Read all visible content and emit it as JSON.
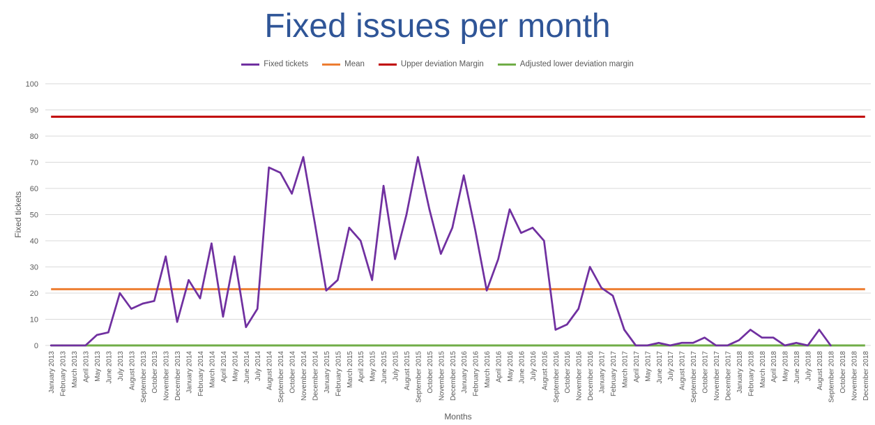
{
  "chart_data": {
    "type": "line",
    "title": "Fixed issues per month",
    "xlabel": "Months",
    "ylabel": "Fixed tickets",
    "ylim": [
      0,
      100
    ],
    "y_ticks": [
      "0",
      "10",
      "20",
      "30",
      "40",
      "50",
      "60",
      "70",
      "80",
      "90",
      "100"
    ],
    "grid": true,
    "legend_position": "top",
    "categories": [
      "January 2013",
      "February 2013",
      "March 2013",
      "April 2013",
      "May 2013",
      "June 2013",
      "July 2013",
      "August 2013",
      "September 2013",
      "October 2013",
      "November 2013",
      "December 2013",
      "January 2014",
      "February 2014",
      "March 2014",
      "April 2014",
      "May 2014",
      "June 2014",
      "July 2014",
      "August 2014",
      "September 2014",
      "October 2014",
      "November 2014",
      "December 2014",
      "January 2015",
      "February 2015",
      "March 2015",
      "April 2015",
      "May 2015",
      "June 2015",
      "July 2015",
      "August 2015",
      "September 2015",
      "October 2015",
      "November 2015",
      "December 2015",
      "January 2016",
      "February 2016",
      "March 2016",
      "April 2016",
      "May 2016",
      "June 2016",
      "July 2016",
      "August 2016",
      "September 2016",
      "October 2016",
      "November 2016",
      "December 2016",
      "January 2017",
      "February 2017",
      "March 2017",
      "April 2017",
      "May 2017",
      "June 2017",
      "July 2017",
      "August 2017",
      "September 2017",
      "October 2017",
      "November 2017",
      "December 2017",
      "January 2018",
      "February 2018",
      "March 2018",
      "April 2018",
      "May 2018",
      "June 2018",
      "July 2018",
      "August 2018",
      "September 2018",
      "October 2018",
      "November 2018",
      "December 2018"
    ],
    "series": [
      {
        "name": "Fixed tickets",
        "color": "#7030A0",
        "kind": "line",
        "values": [
          0,
          0,
          0,
          0,
          4,
          5,
          20,
          14,
          16,
          17,
          34,
          9,
          25,
          18,
          39,
          11,
          34,
          7,
          14,
          68,
          66,
          58,
          72,
          47,
          21,
          25,
          45,
          40,
          25,
          61,
          33,
          50,
          72,
          52,
          35,
          45,
          65,
          44,
          21,
          33,
          52,
          43,
          45,
          40,
          6,
          8,
          14,
          30,
          22,
          19,
          6,
          0,
          0,
          1,
          0,
          1,
          1,
          3,
          0,
          0,
          2,
          6,
          3,
          3,
          0,
          1,
          0,
          6,
          0,
          null,
          null,
          null
        ]
      },
      {
        "name": "Mean",
        "color": "#ED7D31",
        "kind": "constant",
        "value": 21.5
      },
      {
        "name": "Upper deviation Margin",
        "color": "#C00000",
        "kind": "constant",
        "value": 87.4
      },
      {
        "name": "Adjusted lower deviation margin",
        "color": "#70AD47",
        "kind": "constant",
        "value": 0
      }
    ]
  }
}
